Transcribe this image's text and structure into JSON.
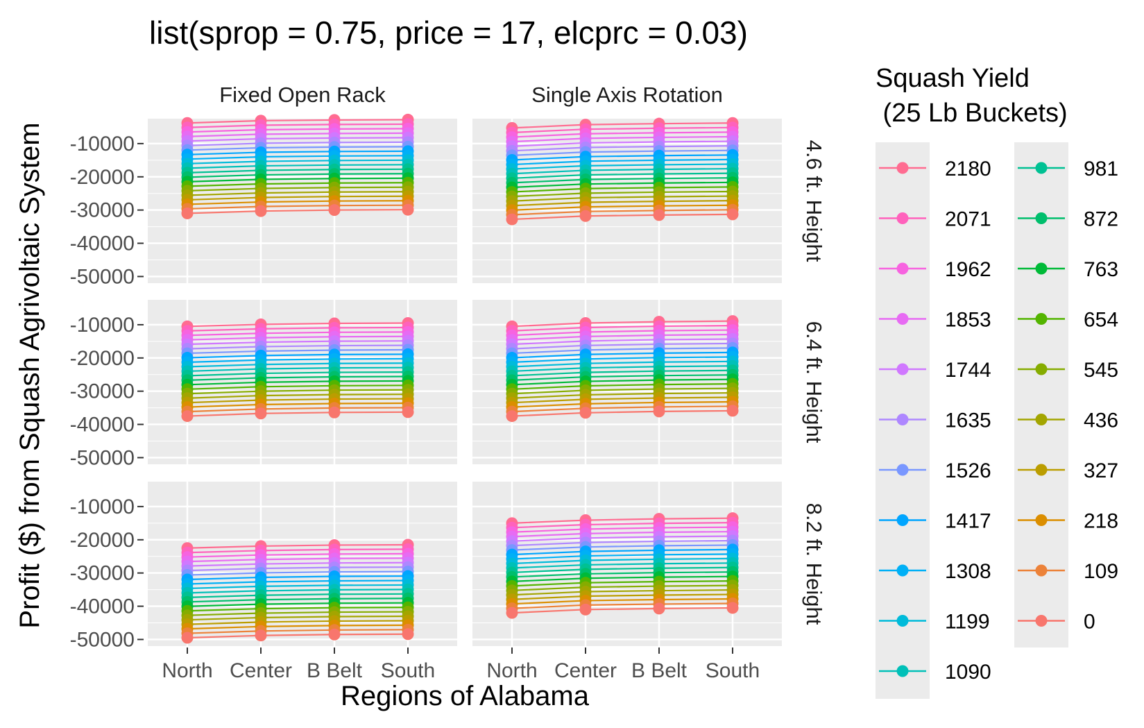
{
  "chart_data": {
    "type": "line",
    "title": "list(sprop = 0.75, price = 17, elcprc = 0.03)",
    "xlabel": "Regions of Alabama",
    "ylabel": "Profit ($) from Squash Agrivoltaic System",
    "categories": [
      "North",
      "Center",
      "B Belt",
      "South"
    ],
    "y_ticks": [
      -10000,
      -20000,
      -30000,
      -40000,
      -50000
    ],
    "y_tick_labels": [
      "-10000",
      "-20000",
      "-30000",
      "-40000",
      "-50000"
    ],
    "ylim": [
      -52000,
      -2500
    ],
    "grid": true,
    "legend_position": "right",
    "column_facets": [
      "Fixed Open Rack",
      "Single Axis Rotation"
    ],
    "row_facets": [
      "4.6 ft. Height",
      "6.4 ft. Height",
      "8.2 ft. Height"
    ],
    "legend": {
      "title_line1": "Squash Yield",
      "title_line2": " (25 Lb Buckets)",
      "entries": [
        {
          "label": "2180",
          "color": "#FF6C91"
        },
        {
          "label": "2071",
          "color": "#FF62BC"
        },
        {
          "label": "1962",
          "color": "#F763E0"
        },
        {
          "label": "1853",
          "color": "#E76BF3"
        },
        {
          "label": "1744",
          "color": "#D078FF"
        },
        {
          "label": "1635",
          "color": "#AE87FF"
        },
        {
          "label": "1526",
          "color": "#7997FF"
        },
        {
          "label": "1417",
          "color": "#00A5FF"
        },
        {
          "label": "1308",
          "color": "#00B0F6"
        },
        {
          "label": "1199",
          "color": "#00BBDA"
        },
        {
          "label": "1090",
          "color": "#00C0B8"
        },
        {
          "label": "981",
          "color": "#00C193"
        },
        {
          "label": "872",
          "color": "#00BE6C"
        },
        {
          "label": "763",
          "color": "#00BA38"
        },
        {
          "label": "654",
          "color": "#53B400"
        },
        {
          "label": "545",
          "color": "#86AC00"
        },
        {
          "label": "436",
          "color": "#A3A500"
        },
        {
          "label": "327",
          "color": "#BB9D00"
        },
        {
          "label": "218",
          "color": "#DB8E00"
        },
        {
          "label": "109",
          "color": "#EC8239"
        },
        {
          "label": "0",
          "color": "#F8766D"
        }
      ]
    },
    "panels": [
      {
        "row": "4.6 ft. Height",
        "col": "Fixed Open Rack",
        "yield_0": [
          -31000,
          -30300,
          -30000,
          -29900
        ],
        "yield_2180": [
          -3800,
          -3100,
          -2900,
          -2800
        ]
      },
      {
        "row": "4.6 ft. Height",
        "col": "Single Axis Rotation",
        "yield_0": [
          -32800,
          -31800,
          -31500,
          -31300
        ],
        "yield_2180": [
          -5300,
          -4300,
          -4000,
          -3800
        ]
      },
      {
        "row": "6.4 ft. Height",
        "col": "Fixed Open Rack",
        "yield_0": [
          -37500,
          -36700,
          -36400,
          -36300
        ],
        "yield_2180": [
          -10500,
          -9900,
          -9600,
          -9500
        ]
      },
      {
        "row": "6.4 ft. Height",
        "col": "Single Axis Rotation",
        "yield_0": [
          -37500,
          -36500,
          -36100,
          -35900
        ],
        "yield_2180": [
          -10500,
          -9500,
          -9100,
          -8900
        ]
      },
      {
        "row": "8.2 ft. Height",
        "col": "Fixed Open Rack",
        "yield_0": [
          -49500,
          -48800,
          -48500,
          -48400
        ],
        "yield_2180": [
          -22500,
          -21900,
          -21600,
          -21500
        ]
      },
      {
        "row": "8.2 ft. Height",
        "col": "Single Axis Rotation",
        "yield_0": [
          -42000,
          -41000,
          -40700,
          -40500
        ],
        "yield_2180": [
          -15000,
          -14100,
          -13700,
          -13500
        ]
      }
    ]
  }
}
